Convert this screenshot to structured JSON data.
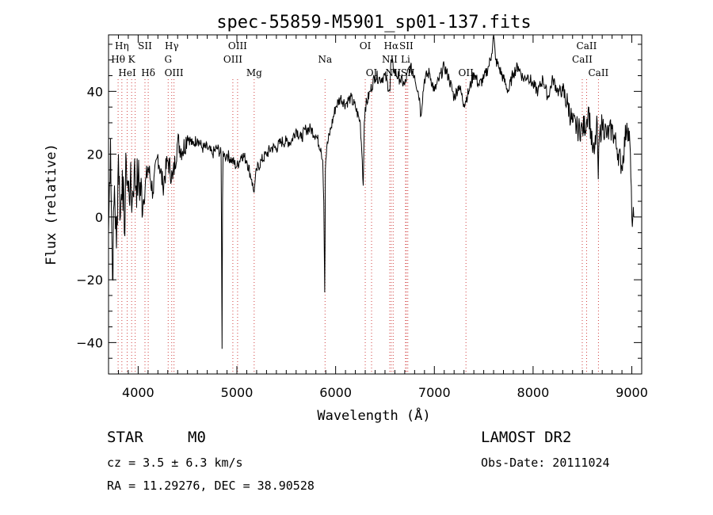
{
  "chart_data": {
    "type": "line",
    "title": "spec-55859-M5901_sp01-137.fits",
    "xlabel": "Wavelength (Å)",
    "ylabel": "Flux (relative)",
    "xlim": [
      3700,
      9100
    ],
    "ylim": [
      -50,
      58
    ],
    "xticks": [
      4000,
      5000,
      6000,
      7000,
      8000,
      9000
    ],
    "yticks": [
      -40,
      -20,
      0,
      20,
      40
    ],
    "grid": false,
    "series": [
      {
        "name": "spectrum",
        "x": [
          3700,
          3720,
          3740,
          3760,
          3780,
          3800,
          3820,
          3840,
          3860,
          3880,
          3900,
          3920,
          3940,
          3960,
          3980,
          4000,
          4050,
          4100,
          4150,
          4200,
          4250,
          4300,
          4350,
          4400,
          4450,
          4500,
          4550,
          4600,
          4650,
          4700,
          4750,
          4800,
          4840,
          4850,
          4855,
          4860,
          4870,
          4880,
          4900,
          4950,
          5000,
          5050,
          5100,
          5150,
          5170,
          5180,
          5200,
          5250,
          5300,
          5350,
          5400,
          5450,
          5500,
          5550,
          5600,
          5650,
          5700,
          5750,
          5800,
          5850,
          5870,
          5880,
          5890,
          5893,
          5896,
          5900,
          5910,
          5950,
          6000,
          6050,
          6100,
          6150,
          6200,
          6250,
          6270,
          6280,
          6290,
          6300,
          6350,
          6400,
          6450,
          6500,
          6550,
          6560,
          6600,
          6650,
          6700,
          6750,
          6800,
          6850,
          6860,
          6900,
          6950,
          7000,
          7050,
          7100,
          7150,
          7200,
          7250,
          7300,
          7350,
          7400,
          7450,
          7500,
          7550,
          7580,
          7600,
          7620,
          7650,
          7700,
          7750,
          7800,
          7850,
          7900,
          7950,
          8000,
          8050,
          8100,
          8150,
          8200,
          8250,
          8300,
          8350,
          8400,
          8450,
          8500,
          8540,
          8560,
          8600,
          8620,
          8650,
          8660,
          8670,
          8700,
          8750,
          8800,
          8850,
          8900,
          8950,
          8980,
          9000,
          9020
        ],
        "values": [
          -5,
          25,
          -20,
          10,
          -10,
          20,
          0,
          15,
          -5,
          18,
          8,
          10,
          5,
          15,
          10,
          12,
          5,
          16,
          8,
          20,
          10,
          18,
          12,
          24,
          21,
          26,
          23,
          25,
          22,
          22,
          20,
          22,
          20,
          -42,
          5,
          21,
          20,
          19,
          20,
          18,
          16,
          20,
          18,
          12,
          8,
          10,
          15,
          18,
          20,
          22,
          22,
          24,
          24,
          24,
          28,
          25,
          28,
          28,
          26,
          22,
          18,
          5,
          -24,
          -10,
          15,
          18,
          22,
          28,
          35,
          38,
          36,
          38,
          35,
          30,
          18,
          10,
          30,
          35,
          40,
          45,
          44,
          45,
          40,
          50,
          46,
          44,
          42,
          48,
          45,
          38,
          32,
          44,
          46,
          40,
          44,
          48,
          44,
          38,
          42,
          36,
          40,
          46,
          42,
          44,
          48,
          52,
          58,
          50,
          48,
          44,
          40,
          46,
          48,
          44,
          45,
          42,
          40,
          44,
          38,
          44,
          40,
          40,
          36,
          30,
          28,
          28,
          30,
          35,
          22,
          20,
          30,
          12,
          25,
          30,
          26,
          28,
          22,
          16,
          30,
          24,
          0,
          0
        ]
      }
    ],
    "line_labels": [
      {
        "text": "Hη",
        "row": 1,
        "wl": 3835
      },
      {
        "text": "Hθ",
        "row": 2,
        "wl": 3797
      },
      {
        "text": "K",
        "row": 2,
        "wl": 3934
      },
      {
        "text": "HeI",
        "row": 3,
        "wl": 3889
      },
      {
        "text": "SII",
        "row": 1,
        "wl": 4069
      },
      {
        "text": "Hδ",
        "row": 3,
        "wl": 4102
      },
      {
        "text": "Hγ",
        "row": 1,
        "wl": 4340
      },
      {
        "text": "G",
        "row": 2,
        "wl": 4304
      },
      {
        "text": "OIII",
        "row": 3,
        "wl": 4363
      },
      {
        "text": "OIII",
        "row": 1,
        "wl": 5007
      },
      {
        "text": "OIII",
        "row": 2,
        "wl": 4959
      },
      {
        "text": "Mg",
        "row": 3,
        "wl": 5175
      },
      {
        "text": "Na",
        "row": 2,
        "wl": 5893
      },
      {
        "text": "OI",
        "row": 1,
        "wl": 6300
      },
      {
        "text": "OI",
        "row": 3,
        "wl": 6364
      },
      {
        "text": "Hα",
        "row": 1,
        "wl": 6563
      },
      {
        "text": "SII",
        "row": 1,
        "wl": 6716
      },
      {
        "text": "NII",
        "row": 2,
        "wl": 6548
      },
      {
        "text": "Li",
        "row": 2,
        "wl": 6708
      },
      {
        "text": "NII",
        "row": 3,
        "wl": 6583
      },
      {
        "text": "SII",
        "row": 3,
        "wl": 6731
      },
      {
        "text": "OII",
        "row": 3,
        "wl": 7320
      },
      {
        "text": "CaII",
        "row": 1,
        "wl": 8542
      },
      {
        "text": "CaII",
        "row": 2,
        "wl": 8498
      },
      {
        "text": "CaII",
        "row": 3,
        "wl": 8662
      }
    ],
    "line_markers": [
      3797,
      3835,
      3889,
      3934,
      3970,
      4069,
      4102,
      4304,
      4340,
      4363,
      4959,
      5007,
      5175,
      5893,
      6300,
      6364,
      6548,
      6563,
      6583,
      6708,
      6716,
      6731,
      7320,
      8498,
      8542,
      8662
    ]
  },
  "info": {
    "object_class": "STAR",
    "subclass": "M0",
    "survey": "LAMOST DR2",
    "redshift": "cz = 3.5 ± 6.3 km/s",
    "obs_date": "Obs-Date: 20111024",
    "coords": "RA =  11.29276, DEC =  38.90528"
  }
}
